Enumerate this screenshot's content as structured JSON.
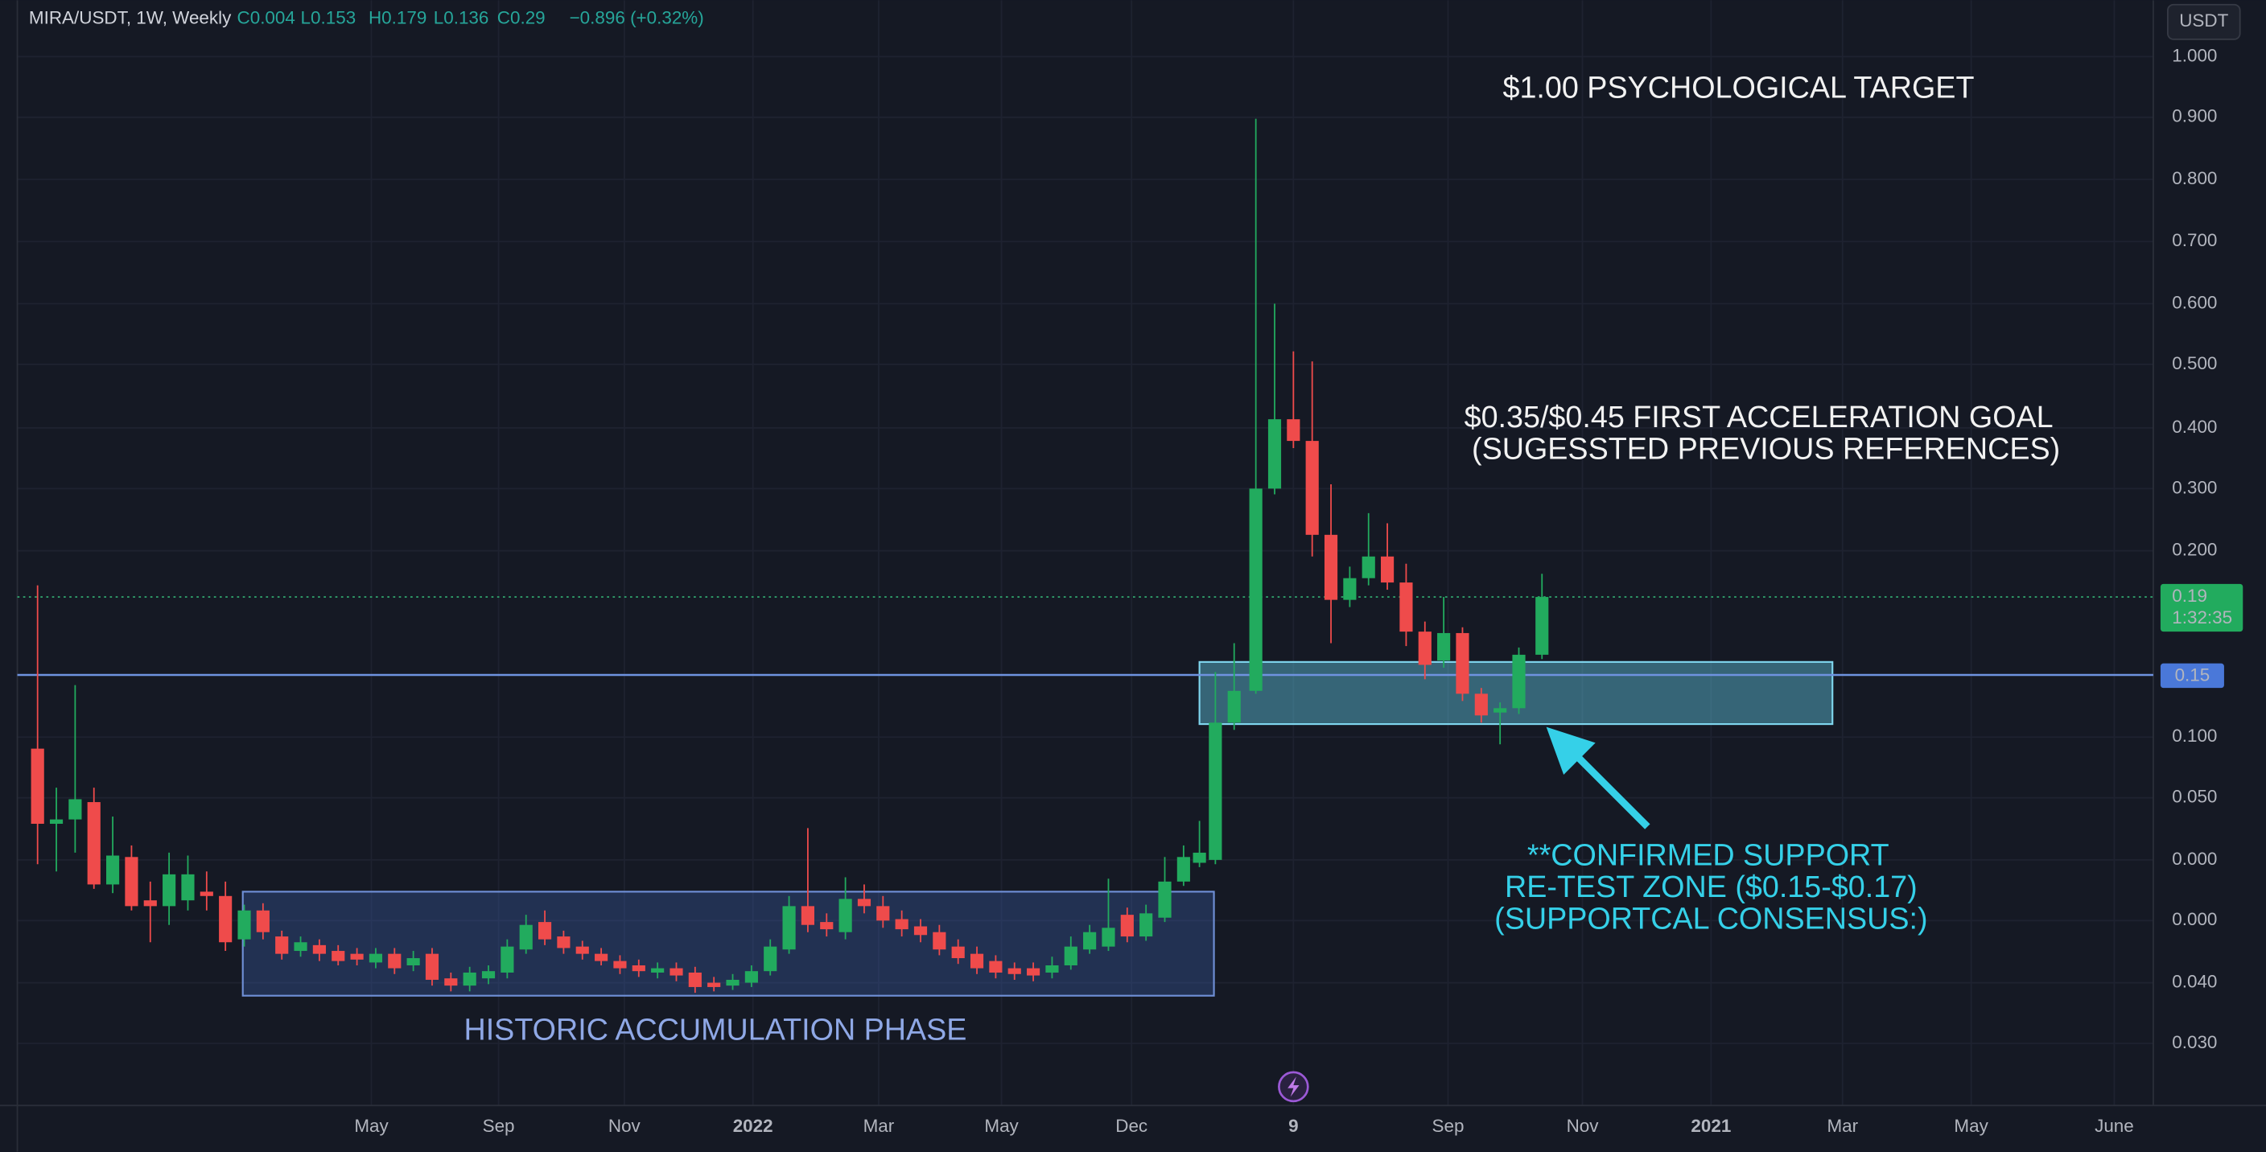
{
  "header": {
    "symbol": "MIRA/USDT, 1W, Weekly",
    "fields": [
      "C0.004",
      "L0.153",
      "H0.179",
      "L0.136",
      "C0.29",
      "−0.896 (+0.32%)"
    ]
  },
  "currency": "USDT",
  "price_axis": [
    "1.000",
    "0.900",
    "0.800",
    "0.700",
    "0.600",
    "0.500",
    "0.400",
    "0.300",
    "0.200",
    "0.100",
    "0.050",
    "0.000",
    "0.000",
    "0.040",
    "0.030"
  ],
  "time_axis": [
    "May",
    "Sep",
    "Nov",
    "2022",
    "Mar",
    "May",
    "Dec",
    "9",
    "Sep",
    "Nov",
    "2021",
    "Mar",
    "May",
    "June"
  ],
  "badges": {
    "last_price": "0.19",
    "countdown": "1:32:35",
    "level": "0.15"
  },
  "annotations": {
    "target": "$1.00 PSYCHOLOGICAL TARGET",
    "goal": [
      "$0.35/$0.45 FIRST ACCELERATION GOAL",
      "(SUGESSTED PREVIOUS REFERENCES)"
    ],
    "support": [
      "**CONFIRMED SUPPORT",
      "RE-TEST ZONE ($0.15-$0.17)",
      "(SUPPORTCAL CONSENSUS:)"
    ],
    "accumulation": "HISTORIC ACCUMULATION PHASE"
  }
}
